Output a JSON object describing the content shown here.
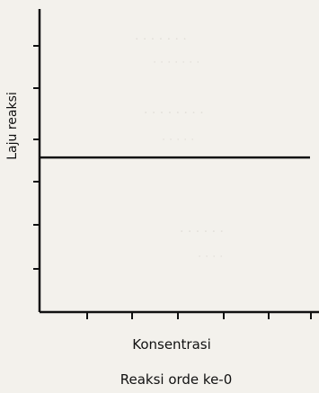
{
  "chart_data": {
    "type": "line",
    "title": "",
    "subtitle": "Reaksi orde ke-0",
    "xlabel": "Konsentrasi",
    "ylabel": "Laju reaksi",
    "x": [
      0,
      1
    ],
    "series": [
      {
        "values": [
          0.51,
          0.51
        ],
        "color": "#111111"
      }
    ],
    "xlim": [
      0,
      1
    ],
    "ylim": [
      0,
      1
    ],
    "grid": false,
    "legend": "none"
  }
}
